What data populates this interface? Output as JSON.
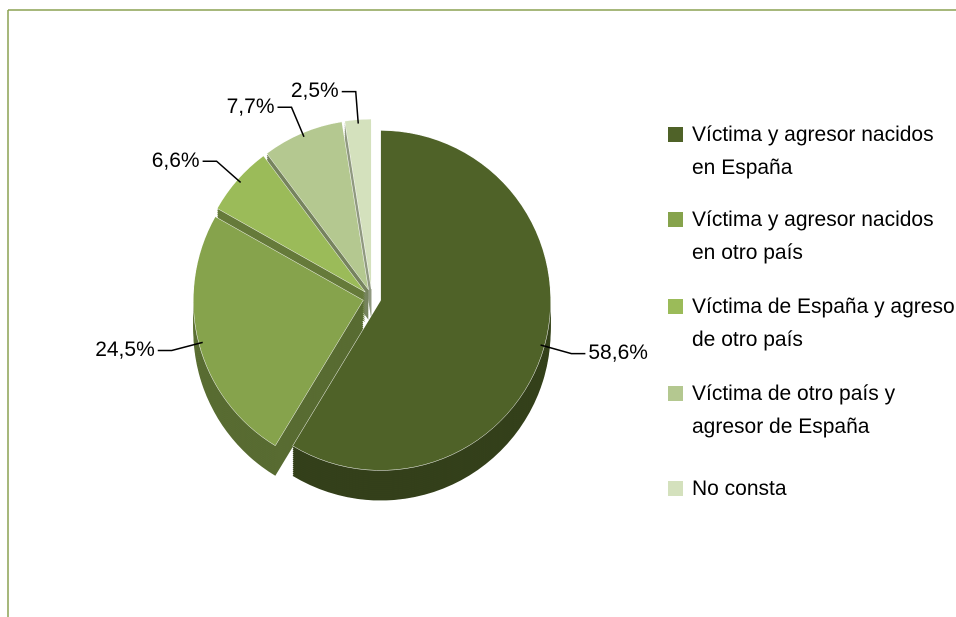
{
  "chart_data": {
    "type": "pie",
    "categories": [
      "Víctima y agresor nacidos en España",
      "Víctima y agresor nacidos en otro país",
      "Víctima de España y agresor de otro país",
      "Víctima de otro país y agresor de España",
      "No consta"
    ],
    "values": [
      58.6,
      24.5,
      6.6,
      7.7,
      2.5
    ],
    "value_labels": [
      "58,6%",
      "24,5%",
      "6,6%",
      "7,7%",
      "2,5%"
    ],
    "colors": [
      "#4f6228",
      "#86a34c",
      "#9bbb59",
      "#b4c890",
      "#d4e1bd"
    ],
    "legend": "right"
  }
}
